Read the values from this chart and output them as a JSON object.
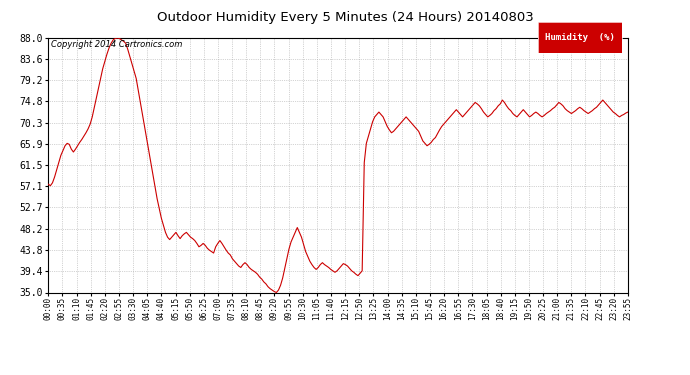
{
  "title": "Outdoor Humidity Every 5 Minutes (24 Hours) 20140803",
  "copyright": "Copyright 2014 Cartronics.com",
  "legend_label": "Humidity  (%)",
  "line_color": "#cc0000",
  "background_color": "#ffffff",
  "plot_bg_color": "#ffffff",
  "grid_color": "#aaaaaa",
  "ylim": [
    35.0,
    88.0
  ],
  "yticks": [
    35.0,
    39.4,
    43.8,
    48.2,
    52.7,
    57.1,
    61.5,
    65.9,
    70.3,
    74.8,
    79.2,
    83.6,
    88.0
  ],
  "legend_bg": "#cc0000",
  "legend_fg": "#ffffff",
  "humidity_data": [
    57.5,
    57.2,
    57.8,
    59.0,
    60.5,
    62.0,
    63.5,
    64.5,
    65.5,
    66.0,
    65.8,
    64.8,
    64.2,
    64.8,
    65.5,
    66.2,
    66.8,
    67.5,
    68.2,
    69.0,
    70.0,
    71.5,
    73.5,
    75.5,
    77.5,
    79.5,
    81.5,
    83.0,
    84.5,
    85.8,
    86.8,
    87.5,
    87.8,
    87.9,
    87.8,
    87.5,
    87.2,
    86.8,
    85.5,
    84.0,
    82.5,
    81.0,
    79.5,
    77.0,
    74.5,
    72.0,
    69.5,
    67.0,
    64.5,
    62.0,
    59.5,
    57.0,
    54.5,
    52.5,
    50.5,
    49.0,
    47.5,
    46.5,
    46.0,
    46.5,
    47.0,
    47.5,
    46.8,
    46.2,
    46.8,
    47.2,
    47.5,
    47.0,
    46.5,
    46.2,
    45.8,
    45.2,
    44.5,
    44.8,
    45.2,
    44.8,
    44.2,
    43.8,
    43.5,
    43.2,
    44.5,
    45.2,
    45.8,
    45.2,
    44.5,
    43.8,
    43.2,
    42.8,
    42.0,
    41.5,
    41.0,
    40.5,
    40.2,
    40.8,
    41.2,
    40.8,
    40.2,
    39.8,
    39.5,
    39.2,
    38.8,
    38.2,
    37.8,
    37.2,
    36.8,
    36.2,
    35.8,
    35.5,
    35.2,
    35.0,
    35.5,
    36.5,
    38.0,
    40.0,
    42.0,
    44.0,
    45.5,
    46.5,
    47.5,
    48.5,
    47.5,
    46.5,
    45.0,
    43.5,
    42.5,
    41.5,
    40.8,
    40.2,
    39.8,
    40.2,
    40.8,
    41.2,
    40.8,
    40.5,
    40.2,
    39.8,
    39.5,
    39.2,
    39.5,
    40.0,
    40.5,
    41.0,
    40.8,
    40.5,
    40.0,
    39.5,
    39.2,
    38.8,
    38.5,
    39.0,
    39.5,
    62.0,
    66.0,
    67.5,
    69.0,
    70.5,
    71.5,
    72.0,
    72.5,
    72.0,
    71.5,
    70.5,
    69.5,
    68.8,
    68.2,
    68.5,
    69.0,
    69.5,
    70.0,
    70.5,
    71.0,
    71.5,
    71.0,
    70.5,
    70.0,
    69.5,
    69.0,
    68.5,
    67.5,
    66.5,
    66.0,
    65.5,
    65.8,
    66.2,
    66.8,
    67.2,
    68.0,
    68.8,
    69.5,
    70.0,
    70.5,
    71.0,
    71.5,
    72.0,
    72.5,
    73.0,
    72.5,
    72.0,
    71.5,
    72.0,
    72.5,
    73.0,
    73.5,
    74.0,
    74.5,
    74.2,
    73.8,
    73.2,
    72.5,
    72.0,
    71.5,
    71.8,
    72.2,
    72.8,
    73.2,
    73.8,
    74.2,
    75.0,
    74.5,
    73.8,
    73.2,
    72.8,
    72.2,
    71.8,
    71.5,
    72.0,
    72.5,
    73.0,
    72.5,
    72.0,
    71.5,
    71.8,
    72.2,
    72.5,
    72.2,
    71.8,
    71.5,
    71.8,
    72.2,
    72.5,
    72.8,
    73.2,
    73.5,
    74.0,
    74.5,
    74.2,
    73.8,
    73.2,
    72.8,
    72.5,
    72.2,
    72.5,
    72.8,
    73.2,
    73.5,
    73.2,
    72.8,
    72.5,
    72.2,
    72.5,
    72.8,
    73.2,
    73.5,
    74.0,
    74.5,
    75.0,
    74.5,
    74.0,
    73.5,
    73.0,
    72.5,
    72.2,
    71.8,
    71.5,
    71.8,
    72.0,
    72.3,
    72.5
  ],
  "x_tick_labels": [
    "00:00",
    "00:35",
    "01:10",
    "01:45",
    "02:20",
    "02:55",
    "03:30",
    "04:05",
    "04:40",
    "05:15",
    "05:50",
    "06:25",
    "07:00",
    "07:35",
    "08:10",
    "08:45",
    "09:20",
    "09:55",
    "10:30",
    "11:05",
    "11:40",
    "12:15",
    "12:50",
    "13:25",
    "14:00",
    "14:35",
    "15:10",
    "15:45",
    "16:20",
    "16:55",
    "17:30",
    "18:05",
    "18:40",
    "19:15",
    "19:50",
    "20:25",
    "21:00",
    "21:35",
    "22:10",
    "22:45",
    "23:20",
    "23:55"
  ]
}
